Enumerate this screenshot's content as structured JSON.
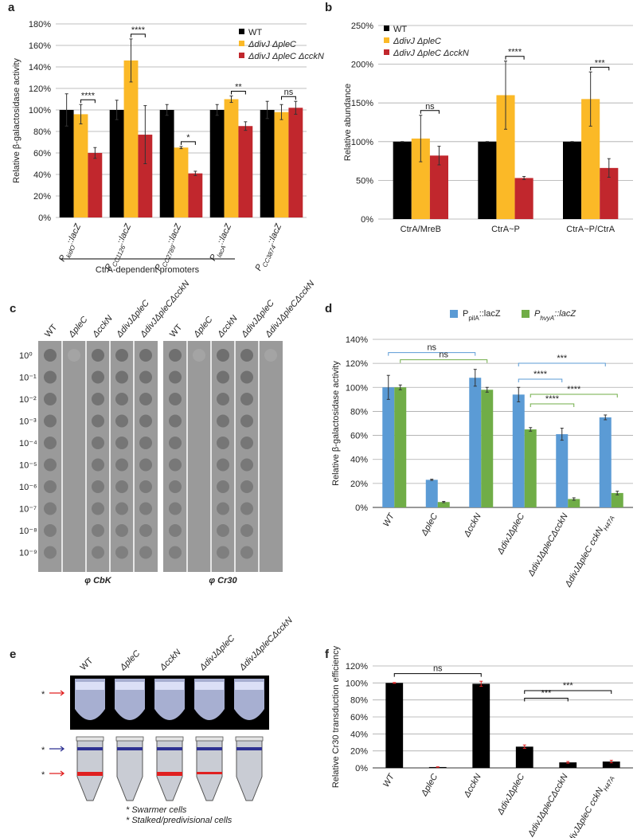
{
  "chart_data": [
    {
      "type": "bar",
      "panel": "a",
      "ylabel": "Relative β-galactosidase activity",
      "categories": [
        {
          "text": "P",
          "sub": "kidO",
          "suffix": "::lacZ"
        },
        {
          "text": "P",
          "sub": "CC1126",
          "suffix": "::lacZ"
        },
        {
          "text": "P",
          "sub": "CC2789",
          "suffix": "::lacZ"
        },
        {
          "text": "P",
          "sub": "lacA",
          "suffix": "::lacZ"
        },
        {
          "text": "P",
          "sub": "CC3874",
          "suffix": "::lacZ"
        }
      ],
      "series": [
        {
          "name": "WT",
          "color": "#000000",
          "values": [
            100,
            100,
            100,
            100,
            100
          ],
          "errors": [
            15,
            9,
            5,
            5,
            8
          ]
        },
        {
          "name": "ΔdivJ ΔpleC",
          "color": "#fbb927",
          "values": [
            96,
            146,
            65,
            110,
            98
          ],
          "errors": [
            9,
            20,
            1,
            3,
            7
          ]
        },
        {
          "name": "ΔdivJ ΔpleC ΔcckN",
          "color": "#c1272d",
          "values": [
            60,
            77,
            41,
            85,
            102
          ],
          "errors": [
            5,
            27,
            2,
            4,
            6
          ]
        }
      ],
      "significance": [
        "****",
        "****",
        "*",
        "**",
        "ns"
      ],
      "group_label": "CtrA-dependent promoters",
      "ylim": [
        0,
        180
      ],
      "yticks": [
        {
          "value": 0,
          "label": "0%"
        },
        {
          "value": 20,
          "label": "20%"
        },
        {
          "value": 40,
          "label": "40%"
        },
        {
          "value": 60,
          "label": "60%"
        },
        {
          "value": 80,
          "label": "80%"
        },
        {
          "value": 100,
          "label": "100%"
        },
        {
          "value": 120,
          "label": "120%"
        },
        {
          "value": 140,
          "label": "140%"
        },
        {
          "value": 160,
          "label": "160%"
        },
        {
          "value": 180,
          "label": "180%"
        }
      ],
      "grid": true,
      "legend": "top-right"
    },
    {
      "type": "bar",
      "panel": "b",
      "ylabel": "Relative abundance",
      "categories": [
        "CtrA/MreB",
        "CtrA~P",
        "CtrA~P/CtrA"
      ],
      "series": [
        {
          "name": "WT",
          "color": "#000000",
          "values": [
            100,
            100,
            100
          ],
          "errors": [
            0,
            0,
            0
          ]
        },
        {
          "name": "ΔdivJ ΔpleC",
          "color": "#fbb927",
          "values": [
            104,
            160,
            155
          ],
          "errors": [
            30,
            44,
            35
          ]
        },
        {
          "name": "ΔdivJ ΔpleC ΔcckN",
          "color": "#c1272d",
          "values": [
            82,
            53,
            66
          ],
          "errors": [
            12,
            2,
            12
          ]
        }
      ],
      "significance": [
        "ns",
        "****",
        "***"
      ],
      "ylim": [
        0,
        250
      ],
      "yticks": [
        {
          "value": 0,
          "label": "0%"
        },
        {
          "value": 50,
          "label": "50%"
        },
        {
          "value": 100,
          "label": "100%"
        },
        {
          "value": 150,
          "label": "150%"
        },
        {
          "value": 200,
          "label": "200%"
        },
        {
          "value": 250,
          "label": "250%"
        }
      ],
      "grid": true,
      "legend": "top-left"
    },
    {
      "type": "bar",
      "panel": "d",
      "ylabel": "Relative β-galactosidase activity",
      "categories": [
        "WT",
        "ΔpleC",
        "ΔcckN",
        "ΔdivJΔpleC",
        "ΔdivJΔpleCΔcckN",
        {
          "text": "ΔdivJΔpleC cckN",
          "sub": "H47A"
        }
      ],
      "series": [
        {
          "name": {
            "text": "P",
            "sub": "pilA",
            "suffix": "::lacZ"
          },
          "color": "#5b9bd5",
          "values": [
            100,
            23,
            108,
            94,
            61,
            75
          ],
          "errors": [
            10,
            0.5,
            7,
            6,
            5,
            2
          ],
          "comparisons": [
            {
              "text": "ns",
              "from": 0,
              "to": 2
            },
            {
              "text": "***",
              "from": 3,
              "to": 5
            },
            {
              "text": "****",
              "from": 3,
              "to": 4
            }
          ]
        },
        {
          "name": {
            "text": "P",
            "sub": "hvyA",
            "suffix": "::lacZ"
          },
          "color": "#70ad47",
          "values": [
            100,
            4.5,
            98,
            65,
            7,
            12
          ],
          "errors": [
            2,
            0.5,
            2,
            1.5,
            1,
            1.5
          ],
          "comparisons": [
            {
              "text": "ns",
              "from": 0,
              "to": 2
            },
            {
              "text": "****",
              "from": 3,
              "to": 5
            },
            {
              "text": "****",
              "from": 3,
              "to": 4
            }
          ]
        }
      ],
      "ylim": [
        0,
        140
      ],
      "yticks": [
        {
          "value": 0,
          "label": "0%"
        },
        {
          "value": 20,
          "label": "20%"
        },
        {
          "value": 40,
          "label": "40%"
        },
        {
          "value": 60,
          "label": "60%"
        },
        {
          "value": 80,
          "label": "80%"
        },
        {
          "value": 100,
          "label": "100%"
        },
        {
          "value": 120,
          "label": "120%"
        },
        {
          "value": 140,
          "label": "140%"
        }
      ],
      "grid": true,
      "legend": "top"
    },
    {
      "type": "bar",
      "panel": "f",
      "ylabel": "Relative Cr30 transduction efficiency",
      "categories": [
        "WT",
        "ΔpleC",
        "ΔcckN",
        "ΔdivJΔpleC",
        "ΔdivJΔpleCΔcckN",
        {
          "text": "ΔdivJΔpleC cckN",
          "sub": "H47A"
        }
      ],
      "series": [
        {
          "color": "#000000",
          "error_color": "#e02020",
          "values": [
            100,
            1,
            99,
            25,
            6.5,
            7.5
          ],
          "errors": [
            0.5,
            0.3,
            3,
            2,
            1,
            1.5
          ],
          "comparisons": [
            {
              "text": "ns",
              "from": 0,
              "to": 2
            },
            {
              "text": "***",
              "from": 3,
              "to": 5
            },
            {
              "text": "***",
              "from": 3,
              "to": 4
            }
          ]
        }
      ],
      "ylim": [
        0,
        120
      ],
      "yticks": [
        {
          "value": 0,
          "label": "0%"
        },
        {
          "value": 20,
          "label": "20%"
        },
        {
          "value": 40,
          "label": "40%"
        },
        {
          "value": 60,
          "label": "60%"
        },
        {
          "value": 80,
          "label": "80%"
        },
        {
          "value": 100,
          "label": "100%"
        },
        {
          "value": 120,
          "label": "120%"
        }
      ],
      "grid": true
    }
  ],
  "panel_c": {
    "label": "c",
    "strains": [
      "WT",
      "ΔpleC",
      "ΔcckN",
      "ΔdivJΔpleC",
      "ΔdivJΔpleCΔcckN"
    ],
    "dilutions": [
      "10⁰",
      "10⁻¹",
      "10⁻²",
      "10⁻³",
      "10⁻⁴",
      "10⁻⁵",
      "10⁻⁶",
      "10⁻⁷",
      "10⁻⁸",
      "10⁻⁹"
    ],
    "phages": [
      "φ CbK",
      "φ Cr30"
    ]
  },
  "panel_e": {
    "label": "e",
    "strains": [
      "WT",
      "ΔpleC",
      "ΔcckN",
      "ΔdivJΔpleC",
      "ΔdivJΔpleCΔcckN"
    ],
    "marker": "*",
    "legend": [
      "Swarmer cells",
      "Stalked/predivisional cells"
    ]
  }
}
